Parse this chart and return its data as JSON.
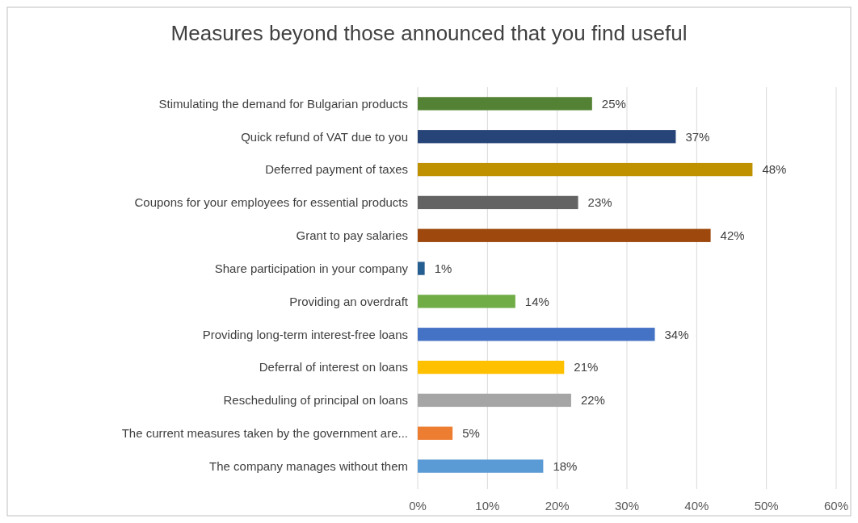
{
  "chart_data": {
    "type": "bar",
    "orientation": "horizontal",
    "title": "Measures beyond those announced that you find useful",
    "categories": [
      "Stimulating the demand for Bulgarian products",
      "Quick refund of VAT due to you",
      "Deferred payment of taxes",
      "Coupons for your employees for essential products",
      "Grant to pay salaries",
      "Share participation in your company",
      "Providing an overdraft",
      "Providing long-term interest-free loans",
      "Deferral of interest on loans",
      "Rescheduling of principal on loans",
      "The current measures taken by the government are...",
      "The company manages without them"
    ],
    "values": [
      25,
      37,
      48,
      23,
      42,
      1,
      14,
      34,
      21,
      22,
      5,
      18
    ],
    "colors": [
      "#548235",
      "#264478",
      "#bf9000",
      "#636363",
      "#9e480e",
      "#255e91",
      "#70ad47",
      "#4472c4",
      "#ffc000",
      "#a5a5a5",
      "#ed7d31",
      "#5b9bd5"
    ],
    "value_labels": [
      "25%",
      "37%",
      "48%",
      "23%",
      "42%",
      "1%",
      "14%",
      "34%",
      "21%",
      "22%",
      "5%",
      "18%"
    ],
    "xlim": [
      0,
      60
    ],
    "xticks": [
      {
        "value": 0,
        "label": "0%"
      },
      {
        "value": 10,
        "label": "10%"
      },
      {
        "value": 20,
        "label": "20%"
      },
      {
        "value": 30,
        "label": "30%"
      },
      {
        "value": 40,
        "label": "40%"
      },
      {
        "value": 50,
        "label": "50%"
      },
      {
        "value": 60,
        "label": "60%"
      }
    ],
    "grid": "x"
  }
}
